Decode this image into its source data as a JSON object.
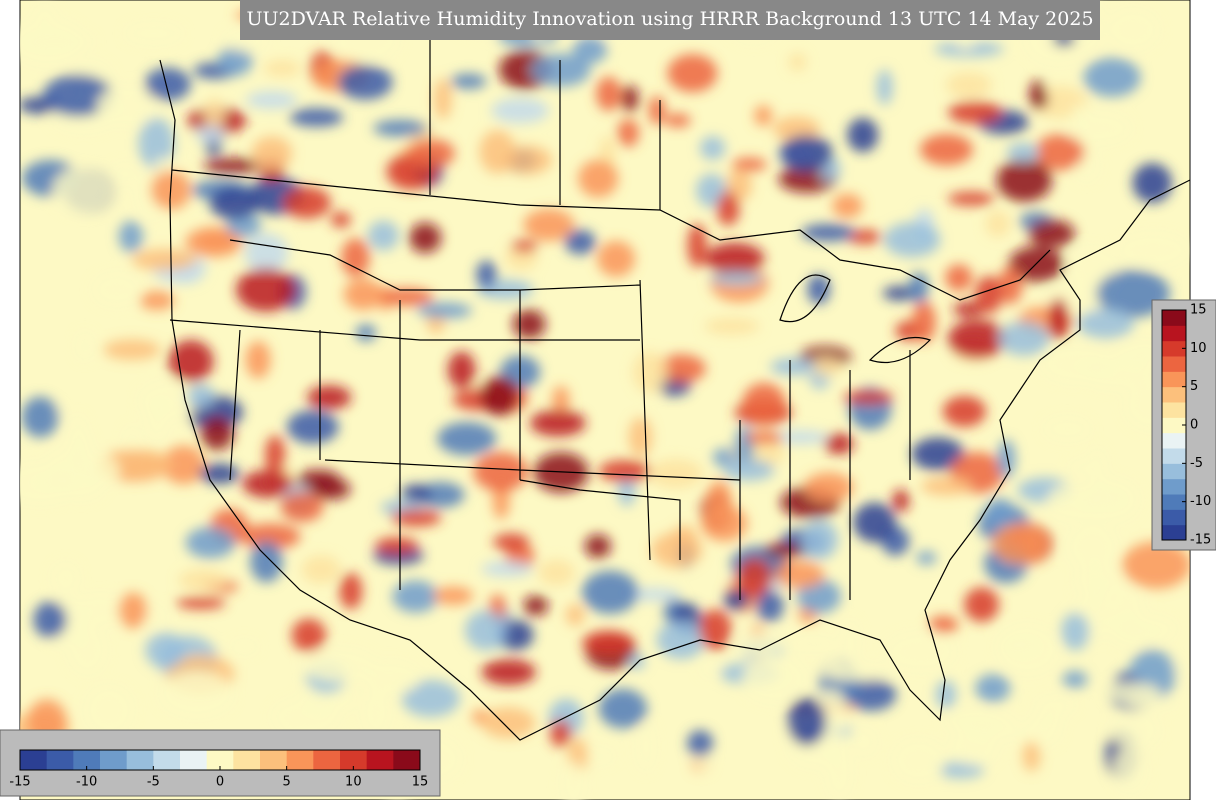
{
  "title": "UU2DVAR Relative Humidity Innovation using HRRR Background 13 UTC 14 May 2025",
  "colormap": [
    "#2b3f93",
    "#3b5ba8",
    "#4f7bb9",
    "#6f9ccb",
    "#98bedc",
    "#c3dbea",
    "#eaf3f4",
    "#fdf9c4",
    "#fde3a0",
    "#fcc07c",
    "#f99559",
    "#ec6540",
    "#d63a2b",
    "#b8141f",
    "#8a0a1a"
  ],
  "colorbars": [
    {
      "orientation": "horizontal",
      "range": [
        -15,
        15
      ],
      "ticks": [
        -15,
        -10,
        -5,
        0,
        5,
        10,
        15
      ]
    },
    {
      "orientation": "vertical",
      "range": [
        -15,
        15
      ],
      "ticks": [
        15,
        10,
        5,
        0,
        -5,
        -10,
        -15
      ]
    }
  ]
}
